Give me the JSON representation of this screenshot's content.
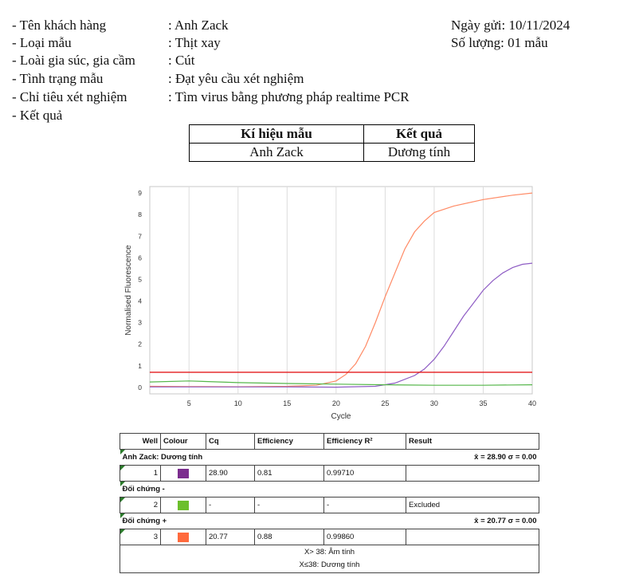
{
  "info": {
    "rows": [
      {
        "label": "-  Tên khách hàng",
        "value": ": Anh Zack"
      },
      {
        "label": "-  Loại mẫu",
        "value": ": Thịt xay"
      },
      {
        "label": "-  Loài gia súc, gia cầm",
        "value": ": Cút"
      },
      {
        "label": "-  Tình trạng mẫu",
        "value": ": Đạt yêu cầu xét nghiệm"
      },
      {
        "label": "- Chỉ tiêu xét nghiệm",
        "value": ": Tìm virus bằng phương pháp realtime PCR"
      },
      {
        "label": "- Kết quả",
        "value": ""
      }
    ],
    "date": "Ngày gửi: 10/11/2024",
    "quantity": "Số lượng: 01 mẫu"
  },
  "result_table": {
    "headers": [
      "Kí hiệu mẫu",
      "Kết quả"
    ],
    "rows": [
      [
        "Anh Zack",
        "Dương tính"
      ]
    ]
  },
  "chart_data": {
    "type": "line",
    "xlabel": "Cycle",
    "ylabel": "Normalised Fluorescence",
    "xlim": [
      1,
      40
    ],
    "ylim": [
      -0.3,
      9.3
    ],
    "xticks": [
      5,
      10,
      15,
      20,
      25,
      30,
      35
    ],
    "xtick_end_label": "40",
    "yticks": [
      0,
      1,
      2,
      3,
      4,
      5,
      6,
      7,
      8,
      9
    ],
    "grid": true,
    "threshold": 0.7,
    "series": [
      {
        "color": "#ff8a65",
        "x": [
          1,
          5,
          10,
          15,
          18,
          20,
          21,
          22,
          23,
          24,
          25,
          26,
          27,
          28,
          29,
          30,
          32,
          35,
          38,
          40
        ],
        "y": [
          0.05,
          0.04,
          0.03,
          0.05,
          0.1,
          0.3,
          0.6,
          1.1,
          1.9,
          3.0,
          4.2,
          5.3,
          6.4,
          7.2,
          7.7,
          8.1,
          8.4,
          8.7,
          8.9,
          9.0
        ]
      },
      {
        "color": "#8e5cc4",
        "x": [
          1,
          5,
          10,
          15,
          20,
          24,
          26,
          28,
          29,
          30,
          31,
          32,
          33,
          34,
          35,
          36,
          37,
          38,
          39,
          40
        ],
        "y": [
          0.02,
          0.02,
          0.02,
          0.02,
          0.01,
          0.05,
          0.2,
          0.55,
          0.85,
          1.3,
          1.9,
          2.6,
          3.3,
          3.9,
          4.5,
          4.95,
          5.3,
          5.55,
          5.7,
          5.75
        ]
      },
      {
        "color": "#55b64a",
        "x": [
          1,
          5,
          10,
          15,
          20,
          25,
          30,
          35,
          40
        ],
        "y": [
          0.25,
          0.3,
          0.22,
          0.18,
          0.15,
          0.12,
          0.1,
          0.1,
          0.12
        ]
      }
    ]
  },
  "wells": {
    "headers": [
      "Well",
      "Colour",
      "Cq",
      "Efficiency",
      "Efficiency R²",
      "Result"
    ],
    "groups": [
      {
        "name": "Anh Zack: Dương tính",
        "summary": "x̄ = 28.90 σ = 0.00",
        "row": {
          "well": "1",
          "colour": "#7b2d8e",
          "cq": "28.90",
          "eff": "0.81",
          "r2": "0.99710",
          "result": ""
        }
      },
      {
        "name": "Đối chứng -",
        "summary": "",
        "row": {
          "well": "2",
          "colour": "#6cbf2c",
          "cq": "-",
          "eff": "-",
          "r2": "-",
          "result": "Excluded"
        }
      },
      {
        "name": "Đối chứng +",
        "summary": "x̄ = 20.77 σ = 0.00",
        "row": {
          "well": "3",
          "colour": "#ff6a3d",
          "cq": "20.77",
          "eff": "0.88",
          "r2": "0.99860",
          "result": ""
        }
      }
    ],
    "legend": [
      "X> 38: Âm tính",
      "X≤38: Dương tính"
    ]
  }
}
